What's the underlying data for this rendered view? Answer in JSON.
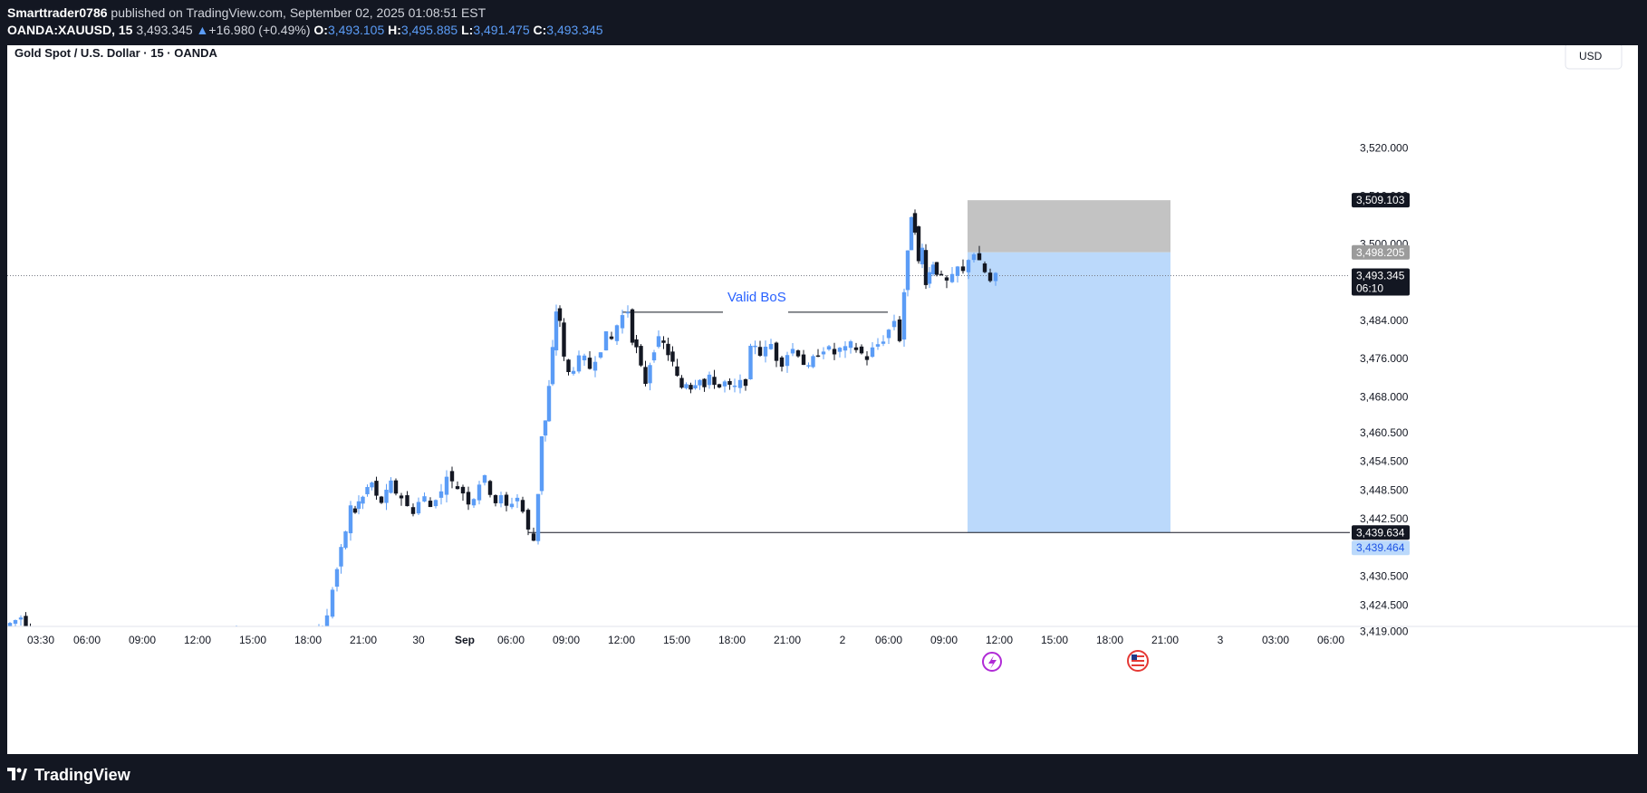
{
  "header": {
    "publisher": "Smarttrader0786",
    "published_text": "published on TradingView.com, September 02, 2025 01:08:51 EST",
    "symbol": "OANDA:XAUUSD, 15",
    "last": "3,493.345",
    "change": "+16.980 (+0.49%)",
    "o_label": "O:",
    "o": "3,493.105",
    "h_label": "H:",
    "h": "3,495.885",
    "l_label": "L:",
    "l": "3,491.475",
    "c_label": "C:",
    "c": "3,493.345"
  },
  "legend_title": "Gold Spot / U.S. Dollar · 15 · OANDA",
  "currency_button": "USD",
  "annotation": "Valid BoS",
  "footer": {
    "brand": "TradingView"
  },
  "colors": {
    "up": "#5b9cf6",
    "down": "#131722",
    "target": "#bbd9fb",
    "stop": "#c0c0c0"
  },
  "chart_data": {
    "type": "candlestick",
    "timeframe": "15",
    "x_ticks": [
      "03:30",
      "06:00",
      "09:00",
      "12:00",
      "15:00",
      "18:00",
      "21:00",
      "30",
      "Sep",
      "06:00",
      "09:00",
      "12:00",
      "15:00",
      "18:00",
      "21:00",
      "2",
      "06:00",
      "09:00",
      "12:00",
      "15:00",
      "18:00",
      "21:00",
      "3",
      "03:00",
      "06:00"
    ],
    "y_ticks": [
      "3,520.000",
      "3,510.000",
      "3,500.000",
      "3,484.000",
      "3,476.000",
      "3,468.000",
      "3,460.500",
      "3,454.500",
      "3,448.500",
      "3,442.500",
      "3,430.500",
      "3,424.500",
      "3,419.000"
    ],
    "ylim": [
      3416,
      3526
    ],
    "price_labels": [
      {
        "value": 3509.103,
        "text": "3,509.103"
      },
      {
        "value": 3498.205,
        "text": "3,498.205"
      },
      {
        "value": 3493.345,
        "text": "3,493.345",
        "sub": "06:10"
      },
      {
        "value": 3439.634,
        "text": "3,439.634"
      },
      {
        "value": 3439.464,
        "text": "3,439.464"
      }
    ],
    "position": {
      "side": "short",
      "entry": 3498.205,
      "stop": 3509.103,
      "target": 3439.634
    },
    "bos_level": 3485.7,
    "support_level": 3439.634,
    "last_price": 3493.345,
    "path": [
      [
        0,
        3420
      ],
      [
        18,
        3422
      ],
      [
        28,
        3417
      ],
      [
        40,
        3418
      ],
      [
        60,
        3418.5
      ],
      [
        80,
        3418
      ],
      [
        100,
        3418
      ],
      [
        130,
        3418.2
      ],
      [
        148,
        3418
      ],
      [
        171,
        3417.5
      ],
      [
        192,
        3418
      ],
      [
        215,
        3418.3
      ],
      [
        238,
        3418
      ],
      [
        262,
        3418.2
      ],
      [
        285,
        3418
      ],
      [
        309,
        3418.5
      ],
      [
        330,
        3418
      ],
      [
        342,
        3417.5
      ],
      [
        346,
        3419
      ],
      [
        350,
        3420
      ],
      [
        356,
        3422
      ],
      [
        362,
        3428
      ],
      [
        366,
        3432
      ],
      [
        371,
        3436
      ],
      [
        376,
        3440
      ],
      [
        382,
        3445
      ],
      [
        386,
        3444
      ],
      [
        390,
        3446
      ],
      [
        395,
        3447
      ],
      [
        400,
        3449
      ],
      [
        405,
        3450
      ],
      [
        410,
        3447
      ],
      [
        416,
        3446
      ],
      [
        421,
        3448
      ],
      [
        426,
        3450
      ],
      [
        432,
        3448
      ],
      [
        438,
        3447
      ],
      [
        445,
        3445
      ],
      [
        451,
        3444
      ],
      [
        457,
        3446
      ],
      [
        464,
        3447
      ],
      [
        470,
        3445
      ],
      [
        476,
        3447
      ],
      [
        482,
        3448
      ],
      [
        488,
        3452
      ],
      [
        494,
        3450
      ],
      [
        500,
        3449
      ],
      [
        506,
        3448
      ],
      [
        512,
        3446
      ],
      [
        518,
        3447
      ],
      [
        524,
        3450
      ],
      [
        530,
        3451
      ],
      [
        536,
        3448
      ],
      [
        542,
        3446
      ],
      [
        548,
        3447
      ],
      [
        554,
        3445
      ],
      [
        560,
        3446
      ],
      [
        566,
        3447
      ],
      [
        572,
        3444
      ],
      [
        578,
        3440
      ],
      [
        584,
        3438
      ],
      [
        588,
        3448
      ],
      [
        592,
        3460
      ],
      [
        596,
        3463
      ],
      [
        600,
        3470
      ],
      [
        604,
        3478
      ],
      [
        608,
        3486
      ],
      [
        612,
        3484
      ],
      [
        617,
        3476
      ],
      [
        622,
        3473
      ],
      [
        628,
        3474
      ],
      [
        634,
        3476
      ],
      [
        640,
        3476
      ],
      [
        646,
        3474
      ],
      [
        652,
        3476
      ],
      [
        658,
        3478
      ],
      [
        664,
        3481
      ],
      [
        670,
        3480
      ],
      [
        676,
        3483
      ],
      [
        682,
        3485
      ],
      [
        688,
        3486
      ],
      [
        692,
        3480
      ],
      [
        697,
        3478
      ],
      [
        702,
        3474
      ],
      [
        707,
        3471
      ],
      [
        712,
        3475
      ],
      [
        716,
        3478
      ],
      [
        722,
        3480
      ],
      [
        727,
        3479
      ],
      [
        732,
        3477
      ],
      [
        737,
        3475
      ],
      [
        742,
        3472
      ],
      [
        747,
        3470
      ],
      [
        752,
        3471
      ],
      [
        757,
        3470
      ],
      [
        762,
        3471
      ],
      [
        767,
        3472
      ],
      [
        772,
        3470
      ],
      [
        778,
        3472
      ],
      [
        783,
        3471
      ],
      [
        789,
        3470
      ],
      [
        795,
        3471
      ],
      [
        800,
        3470
      ],
      [
        806,
        3470
      ],
      [
        812,
        3471
      ],
      [
        818,
        3471
      ],
      [
        823,
        3478
      ],
      [
        828,
        3479
      ],
      [
        834,
        3477
      ],
      [
        840,
        3478
      ],
      [
        846,
        3479
      ],
      [
        852,
        3476
      ],
      [
        858,
        3475
      ],
      [
        864,
        3477
      ],
      [
        870,
        3478
      ],
      [
        876,
        3477
      ],
      [
        882,
        3475
      ],
      [
        887,
        3474
      ],
      [
        892,
        3476
      ],
      [
        898,
        3477
      ],
      [
        904,
        3478
      ],
      [
        910,
        3478
      ],
      [
        916,
        3477
      ],
      [
        922,
        3478
      ],
      [
        928,
        3478
      ],
      [
        934,
        3479
      ],
      [
        940,
        3478
      ],
      [
        946,
        3477
      ],
      [
        952,
        3476
      ],
      [
        958,
        3478
      ],
      [
        964,
        3479
      ],
      [
        970,
        3480
      ],
      [
        976,
        3482
      ],
      [
        982,
        3484
      ],
      [
        988,
        3480
      ],
      [
        992,
        3490
      ],
      [
        996,
        3498
      ],
      [
        1000,
        3506
      ],
      [
        1004,
        3503
      ],
      [
        1008,
        3496
      ],
      [
        1012,
        3499
      ],
      [
        1016,
        3492
      ],
      [
        1020,
        3494
      ],
      [
        1024,
        3496
      ],
      [
        1028,
        3494
      ],
      [
        1034,
        3493
      ],
      [
        1040,
        3492
      ],
      [
        1046,
        3493
      ],
      [
        1052,
        3495
      ],
      [
        1058,
        3494
      ],
      [
        1064,
        3497
      ],
      [
        1070,
        3498
      ],
      [
        1076,
        3496
      ],
      [
        1082,
        3494
      ],
      [
        1088,
        3492
      ],
      [
        1094,
        3493.3
      ]
    ]
  }
}
